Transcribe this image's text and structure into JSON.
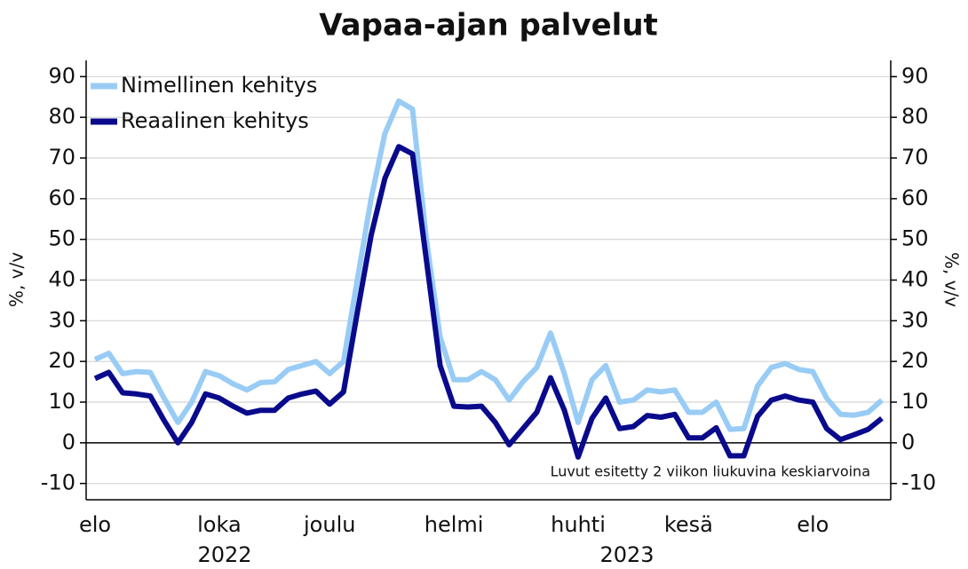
{
  "chart_data": {
    "type": "line",
    "title": "Vapaa-ajan palvelut",
    "y_label": "%, v/v",
    "y2_label": "%, v/v",
    "annotation": "Luvut esitetty 2 viikon liukuvina keskiarvoina",
    "year_labels": [
      "2022",
      "2023"
    ],
    "categories": [
      "elo",
      null,
      null,
      null,
      null,
      null,
      null,
      null,
      null,
      "loka",
      null,
      null,
      null,
      null,
      null,
      null,
      null,
      "joulu",
      null,
      null,
      null,
      null,
      null,
      null,
      null,
      null,
      "helmi",
      null,
      null,
      null,
      null,
      null,
      null,
      null,
      null,
      "huhti",
      null,
      null,
      null,
      null,
      null,
      null,
      null,
      "kesä",
      null,
      null,
      null,
      null,
      null,
      null,
      null,
      null,
      "elo",
      null,
      null,
      null,
      null,
      null
    ],
    "series": [
      {
        "name": "Nimellinen kehitys",
        "color": "#99ccf5",
        "values": [
          20.5,
          22,
          17,
          17.5,
          17.3,
          11,
          5,
          10,
          17.5,
          16.5,
          14.5,
          13,
          14.8,
          15,
          18,
          19,
          20,
          17,
          20,
          40,
          60,
          76,
          84,
          82,
          50,
          26,
          15.5,
          15.5,
          17.5,
          15.5,
          10.5,
          15,
          18.5,
          27,
          17,
          5,
          15.5,
          19,
          10,
          10.5,
          13,
          12.5,
          13,
          7.5,
          7.5,
          10,
          3.3,
          3.5,
          14,
          18.5,
          19.5,
          18,
          17.5,
          11,
          7,
          6.8,
          7.5,
          10.5
        ]
      },
      {
        "name": "Reaalinen kehitys",
        "color": "#0a0a8c",
        "values": [
          15.8,
          17.3,
          12.3,
          12,
          11.5,
          5.5,
          0,
          5,
          12,
          11,
          9,
          7.3,
          8,
          8,
          11,
          12,
          12.7,
          9.5,
          12.5,
          32,
          51,
          65,
          72.8,
          71,
          45,
          19,
          9,
          8.8,
          9,
          5,
          -0.5,
          3.5,
          7.5,
          16,
          8,
          -3.5,
          6,
          11,
          3.5,
          4,
          6.7,
          6.3,
          7,
          1.2,
          1.2,
          3.7,
          -3.2,
          -3.2,
          6.5,
          10.5,
          11.5,
          10.5,
          10,
          3.5,
          0.8,
          2,
          3.3,
          6
        ]
      }
    ],
    "ylim": [
      -14,
      94
    ],
    "yticks": [
      -10,
      0,
      10,
      20,
      30,
      40,
      50,
      60,
      70,
      80,
      90
    ],
    "y2lim": [
      -14,
      94
    ],
    "y2ticks": [
      -10,
      0,
      10,
      20,
      30,
      40,
      50,
      60,
      70,
      80,
      90
    ],
    "grid": true,
    "legend": "upper left"
  }
}
